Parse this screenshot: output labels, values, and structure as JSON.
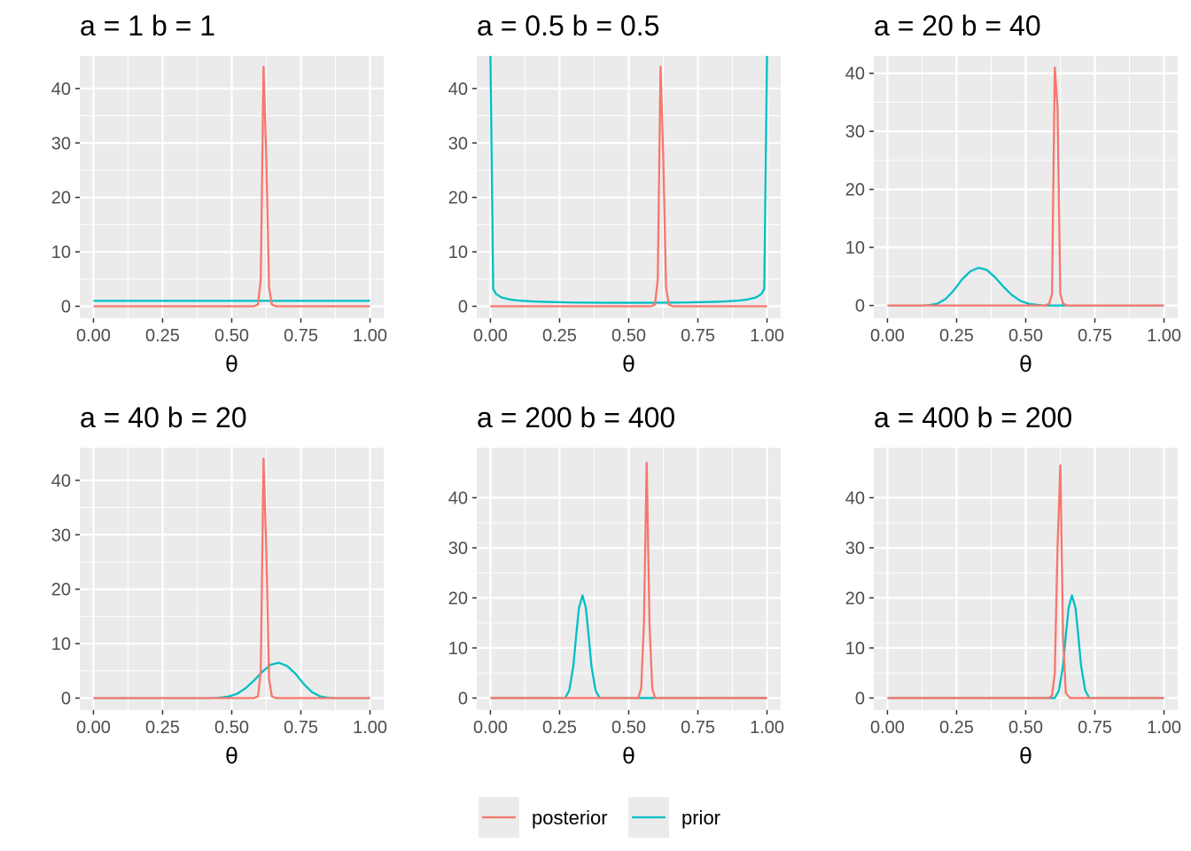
{
  "chart_data": [
    {
      "type": "line",
      "title": "a = 1 b = 1",
      "xlabel": "θ",
      "ylabel": "",
      "xlim": [
        0,
        1
      ],
      "ylim": [
        -2.2,
        46
      ],
      "xticks": [
        "0.00",
        "0.25",
        "0.50",
        "0.75",
        "1.00"
      ],
      "yticks": [
        0,
        10,
        20,
        30,
        40
      ],
      "grid": true,
      "series": [
        {
          "name": "posterior",
          "x": [
            0,
            0.58,
            0.595,
            0.605,
            0.615,
            0.625,
            0.635,
            0.645,
            0.66,
            1
          ],
          "y": [
            0,
            0,
            0.3,
            5,
            44,
            27,
            3.5,
            0.3,
            0,
            0
          ]
        },
        {
          "name": "prior",
          "x": [
            0,
            1
          ],
          "y": [
            1,
            1
          ]
        }
      ]
    },
    {
      "type": "line",
      "title": "a = 0.5 b = 0.5",
      "xlabel": "θ",
      "ylabel": "",
      "xlim": [
        0,
        1
      ],
      "ylim": [
        -2.2,
        46
      ],
      "xticks": [
        "0.00",
        "0.25",
        "0.50",
        "0.75",
        "1.00"
      ],
      "yticks": [
        0,
        10,
        20,
        30,
        40
      ],
      "grid": true,
      "series": [
        {
          "name": "posterior",
          "x": [
            0,
            0.58,
            0.595,
            0.605,
            0.615,
            0.625,
            0.635,
            0.645,
            0.66,
            1
          ],
          "y": [
            0,
            0,
            0.3,
            5,
            44,
            27,
            3.5,
            0.3,
            0,
            0
          ]
        },
        {
          "name": "prior",
          "x": [
            0,
            0.01,
            0.02,
            0.04,
            0.07,
            0.1,
            0.15,
            0.2,
            0.3,
            0.4,
            0.5,
            0.6,
            0.7,
            0.8,
            0.85,
            0.9,
            0.93,
            0.96,
            0.98,
            0.99,
            1
          ],
          "y": [
            46,
            3.2,
            2.27,
            1.62,
            1.25,
            1.06,
            0.89,
            0.8,
            0.69,
            0.65,
            0.64,
            0.65,
            0.69,
            0.8,
            0.89,
            1.06,
            1.25,
            1.62,
            2.27,
            3.2,
            46
          ]
        }
      ]
    },
    {
      "type": "line",
      "title": "a = 20 b = 40",
      "xlabel": "θ",
      "ylabel": "",
      "xlim": [
        0,
        1
      ],
      "ylim": [
        -2.2,
        43
      ],
      "xticks": [
        "0.00",
        "0.25",
        "0.50",
        "0.75",
        "1.00"
      ],
      "yticks": [
        0,
        10,
        20,
        30,
        40
      ],
      "grid": true,
      "series": [
        {
          "name": "posterior",
          "x": [
            0,
            0.57,
            0.585,
            0.595,
            0.605,
            0.615,
            0.625,
            0.635,
            0.65,
            1
          ],
          "y": [
            0,
            0,
            0.3,
            2,
            41,
            34,
            2,
            0.3,
            0,
            0
          ]
        },
        {
          "name": "prior",
          "x": [
            0,
            0.12,
            0.15,
            0.18,
            0.21,
            0.24,
            0.27,
            0.3,
            0.33,
            0.36,
            0.39,
            0.42,
            0.45,
            0.48,
            0.51,
            0.54,
            0.57,
            1
          ],
          "y": [
            0,
            0,
            0.05,
            0.3,
            1.1,
            2.6,
            4.5,
            5.9,
            6.5,
            6.1,
            4.8,
            3.2,
            1.8,
            0.8,
            0.3,
            0.1,
            0,
            0
          ]
        }
      ]
    },
    {
      "type": "line",
      "title": "a = 40 b = 20",
      "xlabel": "θ",
      "ylabel": "",
      "xlim": [
        0,
        1
      ],
      "ylim": [
        -2.2,
        46
      ],
      "xticks": [
        "0.00",
        "0.25",
        "0.50",
        "0.75",
        "1.00"
      ],
      "yticks": [
        0,
        10,
        20,
        30,
        40
      ],
      "grid": true,
      "series": [
        {
          "name": "posterior",
          "x": [
            0,
            0.58,
            0.595,
            0.605,
            0.615,
            0.625,
            0.635,
            0.645,
            0.66,
            1
          ],
          "y": [
            0,
            0,
            0.3,
            5,
            44,
            27,
            3.5,
            0.3,
            0,
            0
          ]
        },
        {
          "name": "prior",
          "x": [
            0,
            0.43,
            0.46,
            0.49,
            0.52,
            0.55,
            0.58,
            0.61,
            0.64,
            0.67,
            0.7,
            0.73,
            0.76,
            0.79,
            0.82,
            0.85,
            0.88,
            1
          ],
          "y": [
            0,
            0,
            0.1,
            0.3,
            0.8,
            1.8,
            3.2,
            4.8,
            6.1,
            6.5,
            5.9,
            4.5,
            2.6,
            1.1,
            0.3,
            0.05,
            0,
            0
          ]
        }
      ]
    },
    {
      "type": "line",
      "title": "a = 200 b = 400",
      "xlabel": "θ",
      "ylabel": "",
      "xlim": [
        0,
        1
      ],
      "ylim": [
        -2.4,
        50
      ],
      "xticks": [
        "0.00",
        "0.25",
        "0.50",
        "0.75",
        "1.00"
      ],
      "yticks": [
        0,
        10,
        20,
        30,
        40
      ],
      "grid": true,
      "series": [
        {
          "name": "posterior",
          "x": [
            0,
            0.535,
            0.545,
            0.555,
            0.565,
            0.575,
            0.585,
            0.595,
            1
          ],
          "y": [
            0,
            0,
            2,
            15,
            47,
            15,
            2,
            0,
            0
          ]
        },
        {
          "name": "prior",
          "x": [
            0,
            0.27,
            0.285,
            0.3,
            0.31,
            0.32,
            0.333,
            0.345,
            0.355,
            0.365,
            0.38,
            0.395,
            1
          ],
          "y": [
            0,
            0,
            1.5,
            6.5,
            12.5,
            18,
            20.5,
            18,
            12.5,
            6.5,
            1.5,
            0,
            0
          ]
        }
      ]
    },
    {
      "type": "line",
      "title": "a = 400 b = 200",
      "xlabel": "θ",
      "ylabel": "",
      "xlim": [
        0,
        1
      ],
      "ylim": [
        -2.4,
        50
      ],
      "xticks": [
        "0.00",
        "0.25",
        "0.50",
        "0.75",
        "1.00"
      ],
      "yticks": [
        0,
        10,
        20,
        30,
        40
      ],
      "grid": true,
      "series": [
        {
          "name": "posterior",
          "x": [
            0,
            0.585,
            0.595,
            0.605,
            0.615,
            0.625,
            0.635,
            0.645,
            0.66,
            1
          ],
          "y": [
            0,
            0,
            0.5,
            5,
            30,
            46.5,
            12,
            1,
            0,
            0
          ]
        },
        {
          "name": "prior",
          "x": [
            0,
            0.605,
            0.62,
            0.635,
            0.645,
            0.655,
            0.667,
            0.68,
            0.69,
            0.7,
            0.715,
            0.73,
            1
          ],
          "y": [
            0,
            0,
            1.5,
            6.5,
            12.5,
            18,
            20.5,
            18,
            12.5,
            6.5,
            1.5,
            0,
            0
          ]
        }
      ]
    }
  ],
  "legend": {
    "position": "bottom",
    "items": [
      {
        "label": "posterior",
        "color": "#F8766D"
      },
      {
        "label": "prior",
        "color": "#00BFC4"
      }
    ]
  },
  "colors": {
    "posterior": "#F8766D",
    "prior": "#00BFC4",
    "panel_background": "#EBEBEB",
    "grid": "#FFFFFF"
  }
}
